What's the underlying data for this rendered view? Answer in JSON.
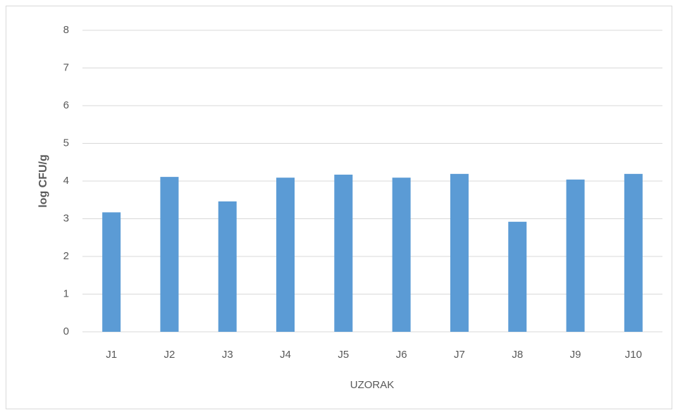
{
  "chart_data": {
    "type": "bar",
    "x_label": "UZORAK",
    "y_label": "log CFU/g",
    "categories": [
      "J1",
      "J2",
      "J3",
      "J4",
      "J5",
      "J6",
      "J7",
      "J8",
      "J9",
      "J10"
    ],
    "values": [
      3.17,
      4.11,
      3.46,
      4.09,
      4.17,
      4.09,
      4.19,
      2.92,
      4.04,
      4.19
    ],
    "color": "#5b9bd5",
    "ylim": [
      0,
      8
    ],
    "yticks": [
      0,
      1,
      2,
      3,
      4,
      5,
      6,
      7,
      8
    ],
    "grid": true
  }
}
